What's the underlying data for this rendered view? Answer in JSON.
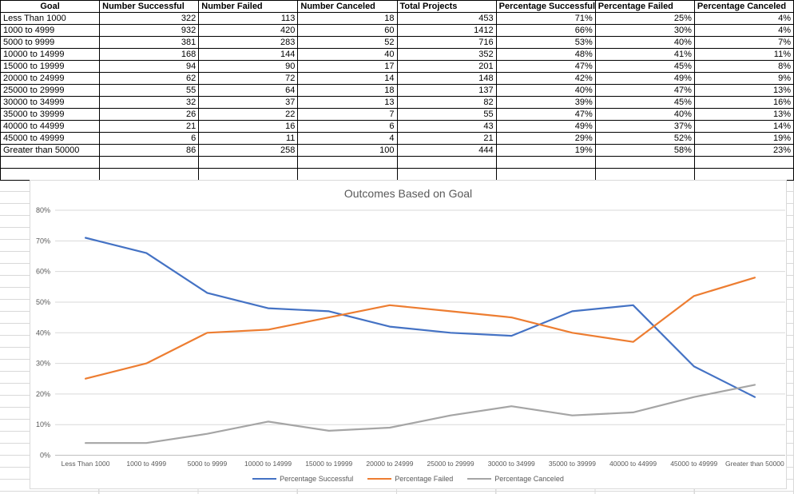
{
  "table": {
    "headers": [
      "Goal",
      "Number Successful",
      "Number Failed",
      "Number Canceled",
      "Total Projects",
      "Percentage Successful",
      "Percentage Failed",
      "Percentage Canceled"
    ],
    "rows": [
      [
        "Less Than 1000",
        "322",
        "113",
        "18",
        "453",
        "71%",
        "25%",
        "4%"
      ],
      [
        "1000 to 4999",
        "932",
        "420",
        "60",
        "1412",
        "66%",
        "30%",
        "4%"
      ],
      [
        "5000 to 9999",
        "381",
        "283",
        "52",
        "716",
        "53%",
        "40%",
        "7%"
      ],
      [
        "10000 to 14999",
        "168",
        "144",
        "40",
        "352",
        "48%",
        "41%",
        "11%"
      ],
      [
        "15000 to 19999",
        "94",
        "90",
        "17",
        "201",
        "47%",
        "45%",
        "8%"
      ],
      [
        "20000 to 24999",
        "62",
        "72",
        "14",
        "148",
        "42%",
        "49%",
        "9%"
      ],
      [
        "25000 to 29999",
        "55",
        "64",
        "18",
        "137",
        "40%",
        "47%",
        "13%"
      ],
      [
        "30000 to 34999",
        "32",
        "37",
        "13",
        "82",
        "39%",
        "45%",
        "16%"
      ],
      [
        "35000 to 39999",
        "26",
        "22",
        "7",
        "55",
        "47%",
        "40%",
        "13%"
      ],
      [
        "40000 to 44999",
        "21",
        "16",
        "6",
        "43",
        "49%",
        "37%",
        "14%"
      ],
      [
        "45000 to 49999",
        "6",
        "11",
        "4",
        "21",
        "29%",
        "52%",
        "19%"
      ],
      [
        "Greater than 50000",
        "86",
        "258",
        "100",
        "444",
        "19%",
        "58%",
        "23%"
      ]
    ],
    "empty_row_count": 2
  },
  "chart_data": {
    "type": "line",
    "title": "Outcomes Based on Goal",
    "categories": [
      "Less Than 1000",
      "1000 to 4999",
      "5000 to 9999",
      "10000 to 14999",
      "15000 to 19999",
      "20000 to 24999",
      "25000 to 29999",
      "30000 to 34999",
      "35000 to 39999",
      "40000 to 44999",
      "45000 to 49999",
      "Greater than 50000"
    ],
    "series": [
      {
        "name": "Percentage Successful",
        "color": "#4472C4",
        "values": [
          71,
          66,
          53,
          48,
          47,
          42,
          40,
          39,
          47,
          49,
          29,
          19
        ]
      },
      {
        "name": "Percentage Failed",
        "color": "#ED7D31",
        "values": [
          25,
          30,
          40,
          41,
          45,
          49,
          47,
          45,
          40,
          37,
          52,
          58
        ]
      },
      {
        "name": "Percentage Canceled",
        "color": "#A5A5A5",
        "values": [
          4,
          4,
          7,
          11,
          8,
          9,
          13,
          16,
          13,
          14,
          19,
          23
        ]
      }
    ],
    "ylim": [
      0,
      80
    ],
    "ytick_labels": [
      "0%",
      "10%",
      "20%",
      "30%",
      "40%",
      "50%",
      "60%",
      "70%",
      "80%"
    ],
    "grid": true,
    "legend_position": "bottom",
    "colors": {
      "gridline": "#D9D9D9",
      "axis_line": "#BFBFBF",
      "text": "#595959"
    }
  }
}
